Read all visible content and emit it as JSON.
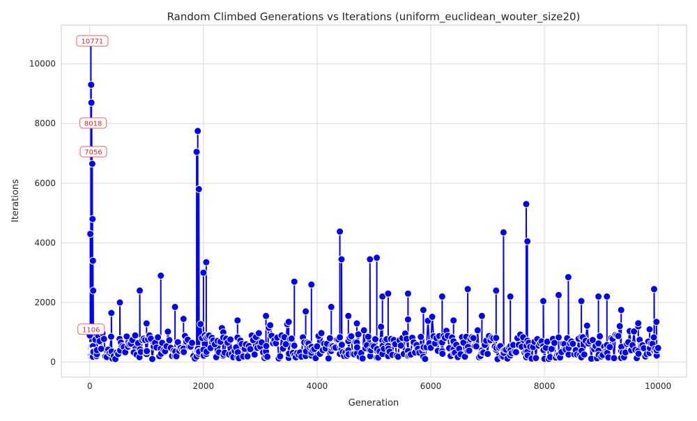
{
  "chart_data": {
    "type": "line",
    "title": "Random Climbed Generations vs Iterations (uniform_euclidean_wouter_size20)",
    "xlabel": "Generation",
    "ylabel": "Iterations",
    "xlim": [
      -500,
      10500
    ],
    "ylim": [
      -500,
      11300
    ],
    "xticks": [
      0,
      2000,
      4000,
      6000,
      8000,
      10000
    ],
    "yticks": [
      0,
      2000,
      4000,
      6000,
      8000,
      10000
    ],
    "grid": true,
    "line_color": "#0000ff",
    "marker_fill": "#0000ff",
    "marker_edge": "#ffffff",
    "annotation_edge": "#ff5a5a",
    "annotation_text_color": "#d62728",
    "spikes": [
      {
        "x": 10,
        "peak": 4300
      },
      {
        "x": 20,
        "peak": 10771
      },
      {
        "x": 25,
        "peak": 9300
      },
      {
        "x": 30,
        "peak": 8700
      },
      {
        "x": 35,
        "peak": 8018
      },
      {
        "x": 40,
        "peak": 7056
      },
      {
        "x": 45,
        "peak": 6650
      },
      {
        "x": 50,
        "peak": 4800
      },
      {
        "x": 55,
        "peak": 3400
      },
      {
        "x": 60,
        "peak": 2400
      },
      {
        "x": 120,
        "peak": 1100
      },
      {
        "x": 380,
        "peak": 1650
      },
      {
        "x": 530,
        "peak": 2000
      },
      {
        "x": 880,
        "peak": 2400
      },
      {
        "x": 1000,
        "peak": 1300
      },
      {
        "x": 1250,
        "peak": 2900
      },
      {
        "x": 1500,
        "peak": 1850
      },
      {
        "x": 1650,
        "peak": 1450
      },
      {
        "x": 1880,
        "peak": 7050
      },
      {
        "x": 1900,
        "peak": 7750
      },
      {
        "x": 1920,
        "peak": 5800
      },
      {
        "x": 2000,
        "peak": 3000
      },
      {
        "x": 2050,
        "peak": 3350
      },
      {
        "x": 2350,
        "peak": 1000
      },
      {
        "x": 2600,
        "peak": 1400
      },
      {
        "x": 3100,
        "peak": 1550
      },
      {
        "x": 3500,
        "peak": 1350
      },
      {
        "x": 3600,
        "peak": 2700
      },
      {
        "x": 3800,
        "peak": 1700
      },
      {
        "x": 3900,
        "peak": 2600
      },
      {
        "x": 4250,
        "peak": 1850
      },
      {
        "x": 4400,
        "peak": 4380
      },
      {
        "x": 4430,
        "peak": 3450
      },
      {
        "x": 4550,
        "peak": 1550
      },
      {
        "x": 4700,
        "peak": 1300
      },
      {
        "x": 4930,
        "peak": 3450
      },
      {
        "x": 5050,
        "peak": 3500
      },
      {
        "x": 5150,
        "peak": 2200
      },
      {
        "x": 5250,
        "peak": 2300
      },
      {
        "x": 5600,
        "peak": 2300
      },
      {
        "x": 5870,
        "peak": 1750
      },
      {
        "x": 6200,
        "peak": 2200
      },
      {
        "x": 6400,
        "peak": 1400
      },
      {
        "x": 6650,
        "peak": 2450
      },
      {
        "x": 6900,
        "peak": 1550
      },
      {
        "x": 7150,
        "peak": 2400
      },
      {
        "x": 7280,
        "peak": 4350
      },
      {
        "x": 7400,
        "peak": 2200
      },
      {
        "x": 7680,
        "peak": 5300
      },
      {
        "x": 7700,
        "peak": 4050
      },
      {
        "x": 7980,
        "peak": 2050
      },
      {
        "x": 8250,
        "peak": 2250
      },
      {
        "x": 8420,
        "peak": 2850
      },
      {
        "x": 8650,
        "peak": 2050
      },
      {
        "x": 8950,
        "peak": 2200
      },
      {
        "x": 9100,
        "peak": 2200
      },
      {
        "x": 9350,
        "peak": 1750
      },
      {
        "x": 9650,
        "peak": 1200
      },
      {
        "x": 9850,
        "peak": 1100
      },
      {
        "x": 9930,
        "peak": 2450
      },
      {
        "x": 9970,
        "peak": 1350
      }
    ],
    "baseline_range": [
      100,
      900
    ],
    "annotations": [
      {
        "x": 20,
        "y": 10771,
        "label": "10771"
      },
      {
        "x": 35,
        "y": 8018,
        "label": "8018"
      },
      {
        "x": 40,
        "y": 7056,
        "label": "7056"
      },
      {
        "x": 0,
        "y": 1106,
        "label": "1106"
      }
    ]
  }
}
